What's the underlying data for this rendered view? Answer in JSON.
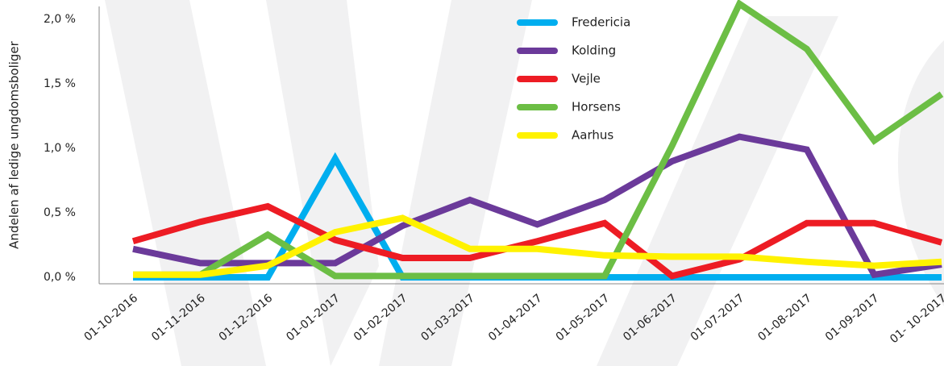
{
  "chart_data": {
    "type": "line",
    "y_label": "Andelen af ledige ungdomsboliger",
    "categories": [
      "01-10-2016",
      "01-11-2016",
      "01-12-2016",
      "01-01-2017",
      "01-02-2017",
      "01-03-2017",
      "01-04-2017",
      "01-05-2017",
      "01-06-2017",
      "01-07-2017",
      "01-08-2017",
      "01-09-2017",
      "01- 10-2017"
    ],
    "series": [
      {
        "name": "Fredericia",
        "color": "#00aeef",
        "values": [
          0,
          0,
          0,
          0.92,
          0,
          0,
          0,
          0,
          0,
          0,
          0,
          0,
          0
        ]
      },
      {
        "name": "Kolding",
        "color": "#6b3a9a",
        "values": [
          0.22,
          0.11,
          0.11,
          0.11,
          0.4,
          0.6,
          0.41,
          0.6,
          0.9,
          1.09,
          0.99,
          0.02,
          0.1
        ]
      },
      {
        "name": "Vejle",
        "color": "#ed1c24",
        "values": [
          0.28,
          0.43,
          0.55,
          0.29,
          0.15,
          0.15,
          0.28,
          0.42,
          0.01,
          0.14,
          0.42,
          0.42,
          0.27
        ]
      },
      {
        "name": "Horsens",
        "color": "#6cbe45",
        "values": [
          0.02,
          0.02,
          0.33,
          0.01,
          0.01,
          0.01,
          0.01,
          0.01,
          1.02,
          2.12,
          1.77,
          1.06,
          1.42
        ]
      },
      {
        "name": "Aarhus",
        "color": "#fff200",
        "values": [
          0.02,
          0.02,
          0.09,
          0.35,
          0.46,
          0.22,
          0.22,
          0.17,
          0.16,
          0.16,
          0.12,
          0.09,
          0.12
        ]
      }
    ],
    "ylim": [
      0,
      2.0
    ],
    "yticks": [
      {
        "value": 0,
        "label": "0,0 %"
      },
      {
        "value": 0.5,
        "label": "0,5 %"
      },
      {
        "value": 1.0,
        "label": "1,0 %"
      },
      {
        "value": 1.5,
        "label": "1,5 %"
      },
      {
        "value": 2.0,
        "label": "2,0 %"
      }
    ],
    "legend": "top-center"
  }
}
